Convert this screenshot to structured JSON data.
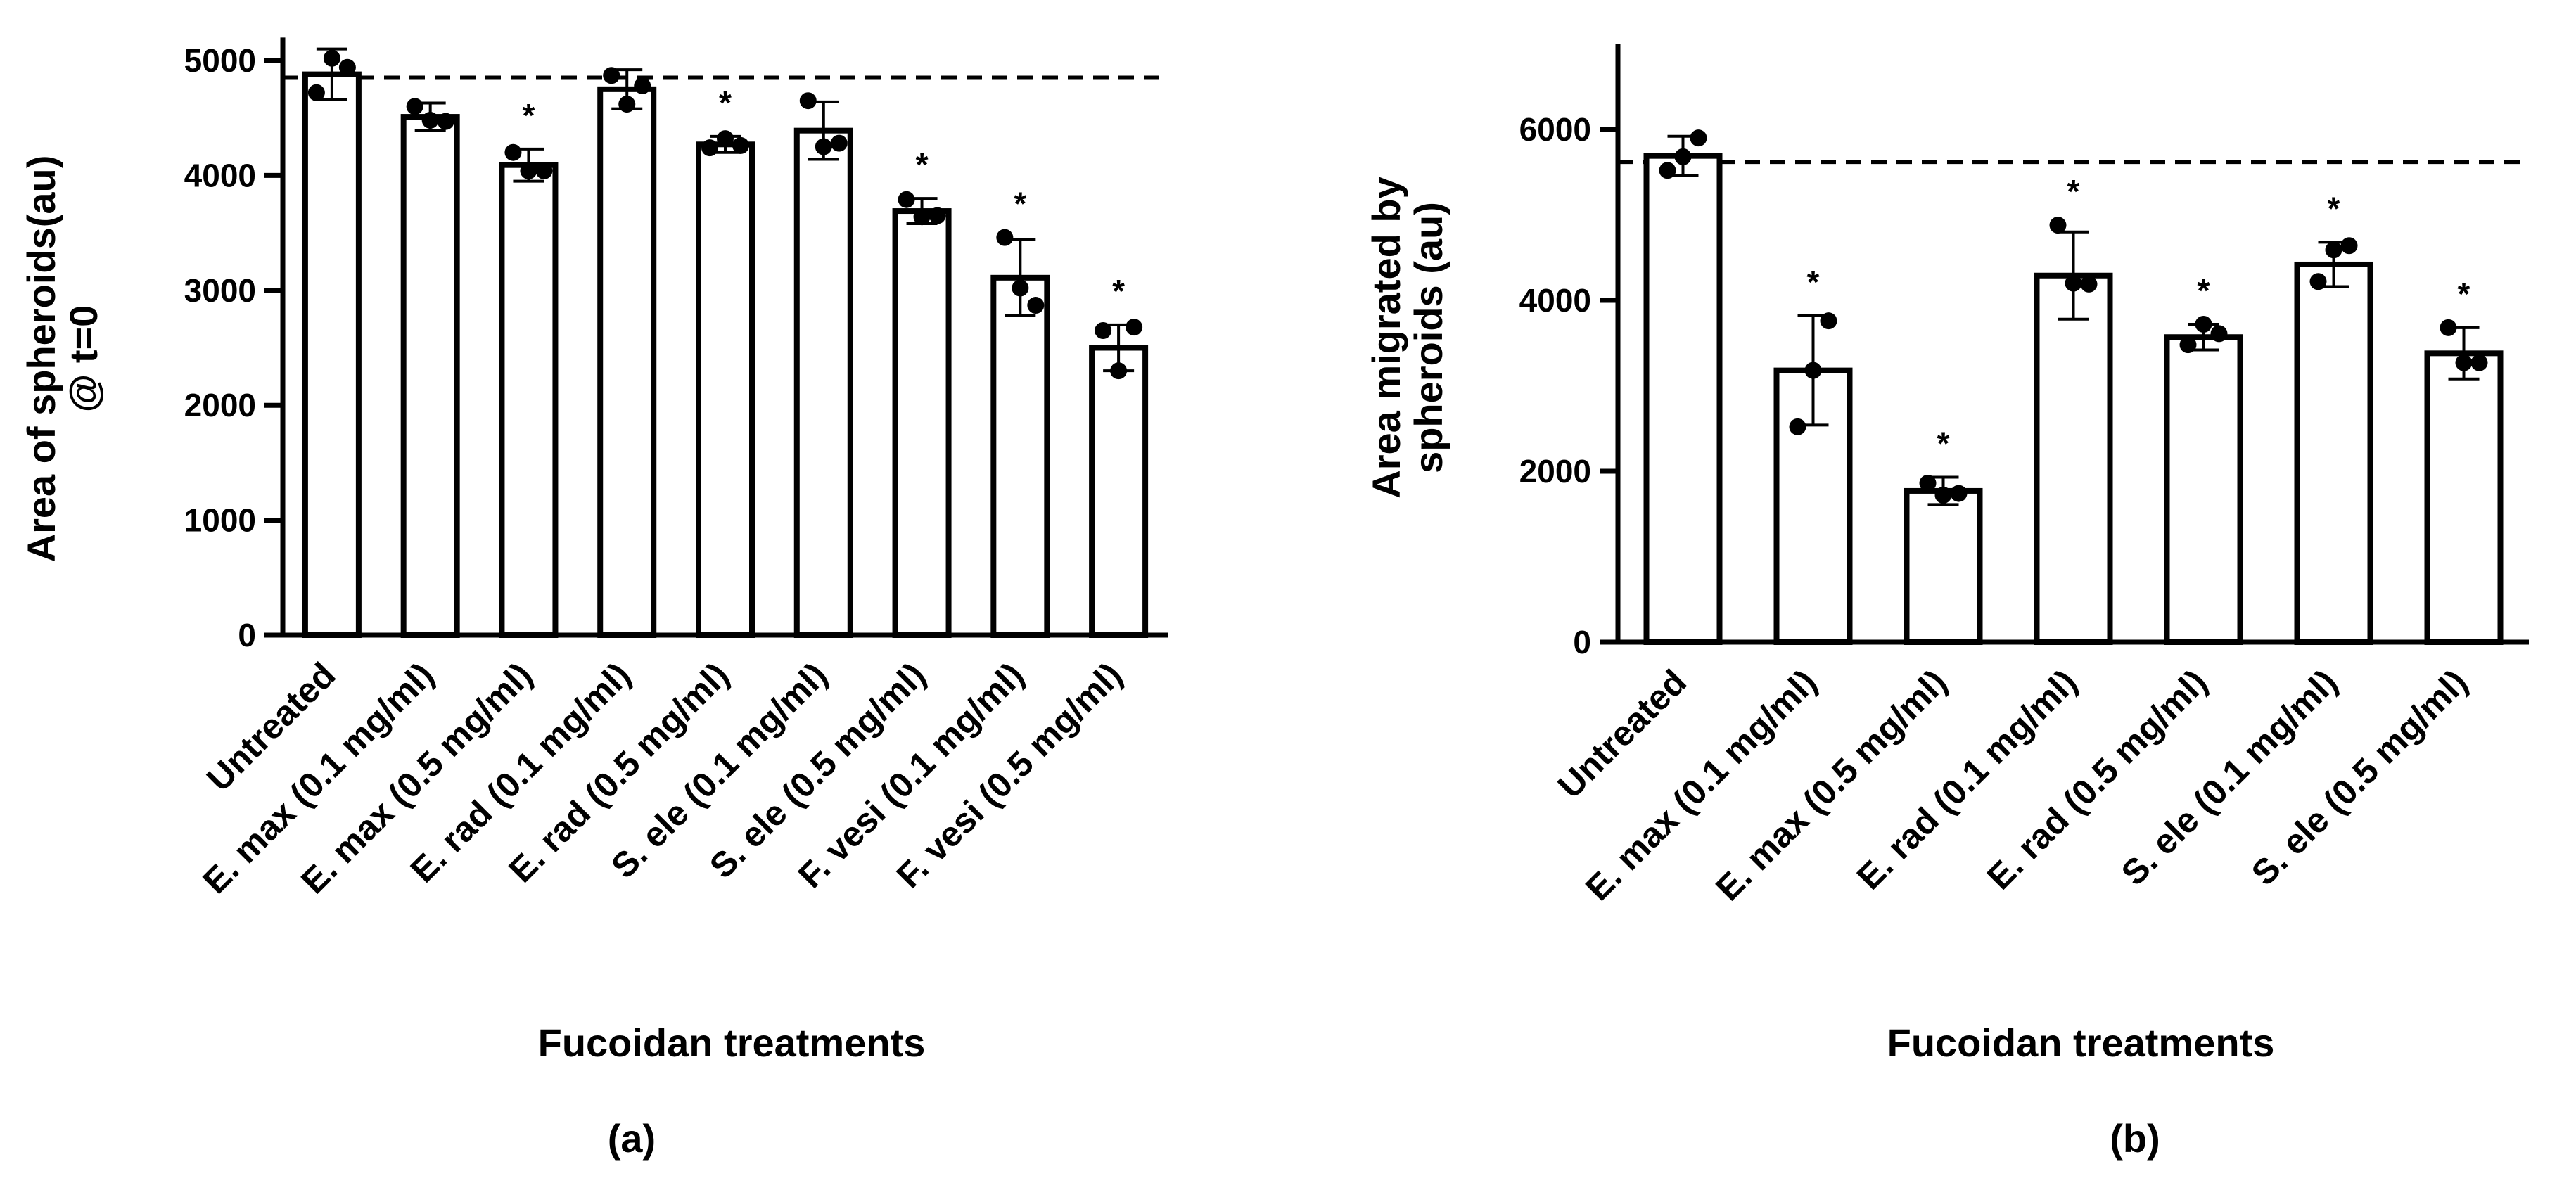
{
  "chart_data": [
    {
      "type": "bar",
      "panel_label": "(a)",
      "title": "",
      "xlabel": "Fucoidan treatments",
      "ylabel_lines": [
        "Area of spheroids(au)",
        "@ t=0"
      ],
      "ylim": [
        0,
        5200
      ],
      "yticks": [
        0,
        1000,
        2000,
        3000,
        4000,
        5000
      ],
      "ytick_labels": [
        "0",
        "1000",
        "2000",
        "3000",
        "4000",
        "5000"
      ],
      "reference_line": 4850,
      "categories": [
        "Untreated",
        "E. max (0.1 mg/ml)",
        "E. max (0.5 mg/ml)",
        "E. rad (0.1 mg/ml)",
        "E. rad (0.5 mg/ml)",
        "S. ele (0.1 mg/ml)",
        "S. ele (0.5 mg/ml)",
        "F. vesi (0.1 mg/ml)",
        "F. vesi (0.5 mg/ml)"
      ],
      "values": [
        4880,
        4510,
        4090,
        4750,
        4270,
        4390,
        3690,
        3110,
        2500
      ],
      "error": [
        220,
        120,
        140,
        170,
        70,
        250,
        110,
        330,
        200
      ],
      "points": [
        [
          4720,
          5020,
          4940
        ],
        [
          4600,
          4480,
          4470
        ],
        [
          4200,
          4040,
          4040
        ],
        [
          4870,
          4620,
          4780
        ],
        [
          4240,
          4320,
          4260
        ],
        [
          4650,
          4250,
          4280
        ],
        [
          3790,
          3640,
          3650
        ],
        [
          3460,
          3020,
          2870
        ],
        [
          2650,
          2300,
          2680
        ]
      ],
      "significant": [
        "",
        "",
        "*",
        "",
        "*",
        "",
        "*",
        "*",
        "*"
      ]
    },
    {
      "type": "bar",
      "panel_label": "(b)",
      "title": "",
      "xlabel": "Fucoidan treatments",
      "ylabel_lines": [
        "Area migrated by",
        "spheroids (au)"
      ],
      "ylim": [
        0,
        7000
      ],
      "yticks": [
        0,
        2000,
        4000,
        6000
      ],
      "ytick_labels": [
        "0",
        "2000",
        "4000",
        "6000"
      ],
      "reference_line": 5620,
      "categories": [
        "Untreated",
        "E. max (0.1 mg/ml)",
        "E. max (0.5 mg/ml)",
        "E. rad (0.1 mg/ml)",
        "E. rad (0.5 mg/ml)",
        "S. ele (0.1 mg/ml)",
        "S. ele (0.5 mg/ml)"
      ],
      "values": [
        5690,
        3180,
        1770,
        4290,
        3570,
        4420,
        3380
      ],
      "error": [
        230,
        640,
        160,
        510,
        150,
        260,
        300
      ],
      "points": [
        [
          5520,
          5680,
          5900
        ],
        [
          2520,
          3180,
          3760
        ],
        [
          1860,
          1720,
          1740
        ],
        [
          4880,
          4200,
          4190
        ],
        [
          3480,
          3720,
          3610
        ],
        [
          4220,
          4590,
          4640
        ],
        [
          3680,
          3270,
          3270
        ]
      ],
      "significant": [
        "",
        "*",
        "*",
        "*",
        "*",
        "*",
        "*"
      ]
    }
  ]
}
